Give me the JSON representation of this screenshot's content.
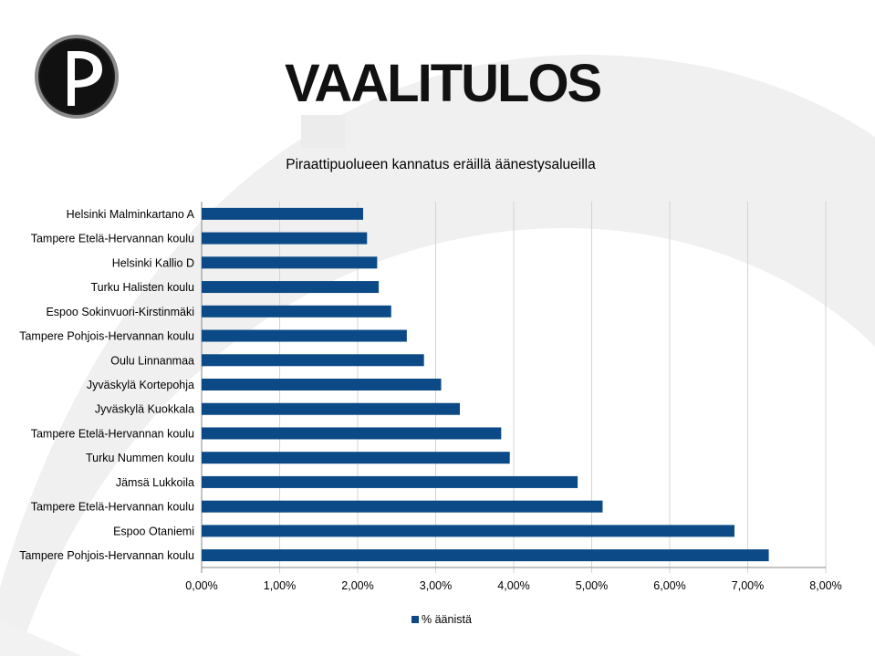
{
  "slide": {
    "title": "VAALITULOS"
  },
  "chart_data": {
    "type": "bar",
    "orientation": "horizontal",
    "title": "Piraattipuolueen kannatus eräillä äänestysalueilla",
    "xlabel": "",
    "ylabel": "",
    "xlim": [
      0,
      8
    ],
    "x_ticks": [
      "0,00%",
      "1,00%",
      "2,00%",
      "3,00%",
      "4,00%",
      "5,00%",
      "6,00%",
      "7,00%",
      "8,00%"
    ],
    "grid": true,
    "legend_position": "bottom",
    "bar_color": "#0b4a86",
    "categories": [
      "Helsinki Malminkartano A",
      "Tampere Etelä-Hervannan koulu",
      "Helsinki Kallio D",
      "Turku Halisten koulu",
      "Espoo Sokinvuori-Kirstinmäki",
      "Tampere Pohjois-Hervannan koulu",
      "Oulu Linnanmaa",
      "Jyväskylä Kortepohja",
      "Jyväskylä Kuokkala",
      "Tampere Etelä-Hervannan koulu",
      "Turku Nummen koulu",
      "Jämsä Lukkoila",
      "Tampere Etelä-Hervannan koulu",
      "Espoo Otaniemi",
      "Tampere Pohjois-Hervannan koulu"
    ],
    "series": [
      {
        "name": "% äänistä",
        "values": [
          2.07,
          2.12,
          2.25,
          2.27,
          2.43,
          2.63,
          2.85,
          3.07,
          3.31,
          3.84,
          3.95,
          4.82,
          5.14,
          6.83,
          7.27
        ]
      }
    ]
  }
}
